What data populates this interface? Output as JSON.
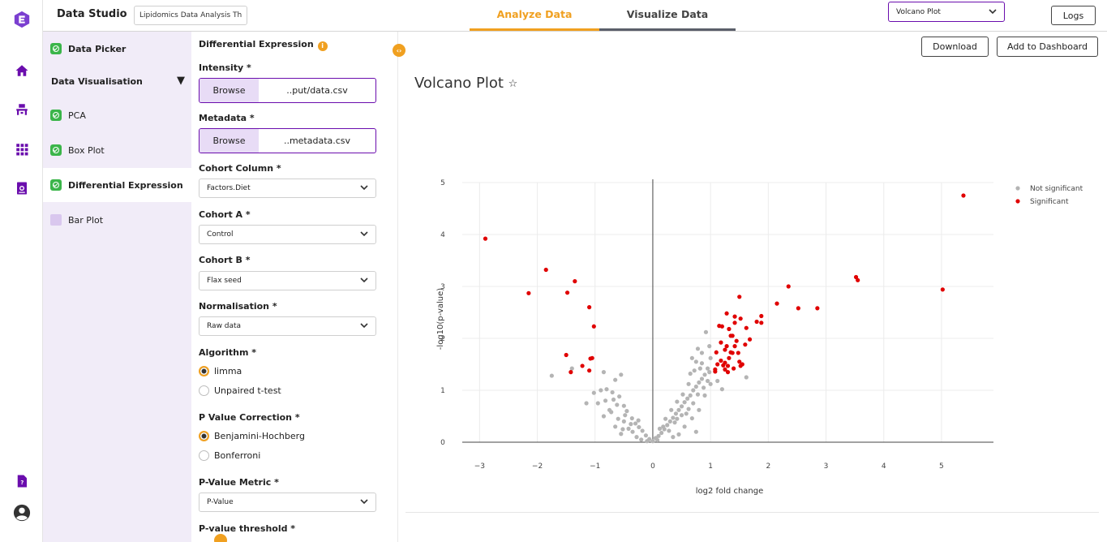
{
  "header": {
    "app_title": "Data Studio",
    "project_name": "Lipidomics Data Analysis Th",
    "tabs": [
      "Analyze Data",
      "Visualize Data"
    ],
    "view_select": "Volcano Plot",
    "logs_label": "Logs"
  },
  "rail": {
    "icons": [
      "logo-icon",
      "home-icon",
      "pipeline-icon",
      "grid-icon",
      "report-icon",
      "help-doc-icon",
      "user-icon"
    ]
  },
  "steps": {
    "data_picker": "Data Picker",
    "group": "Data Visualisation",
    "items": [
      "PCA",
      "Box Plot",
      "Differential Expression",
      "Bar Plot"
    ]
  },
  "form": {
    "title": "Differential Expression",
    "intensity_label": "Intensity *",
    "intensity_file": "..put/data.csv",
    "metadata_label": "Metadata *",
    "metadata_file": "..metadata.csv",
    "browse_label": "Browse",
    "cohort_column_label": "Cohort Column *",
    "cohort_column": "Factors.Diet",
    "cohort_a_label": "Cohort A *",
    "cohort_a": "Control",
    "cohort_b_label": "Cohort B *",
    "cohort_b": "Flax seed",
    "normalisation_label": "Normalisation *",
    "normalisation": "Raw data",
    "algorithm_label": "Algorithm *",
    "algorithm_options": [
      "limma",
      "Unpaired t-test"
    ],
    "pvc_label": "P Value Correction *",
    "pvc_options": [
      "Benjamini-Hochberg",
      "Bonferroni"
    ],
    "pmetric_label": "P-Value Metric *",
    "pmetric": "P-Value",
    "pthreshold_label": "P-value threshold *"
  },
  "main": {
    "download_label": "Download",
    "dashboard_label": "Add to Dashboard",
    "title": "Volcano Plot"
  },
  "colors": {
    "accent": "#f0a020",
    "brand": "#6a0dad",
    "significant": "#e00000",
    "not_significant": "#b4b4b4"
  },
  "chart_data": {
    "type": "scatter",
    "title": "",
    "xlabel": "log2 fold change",
    "ylabel": "-log10(p-value)",
    "xlim": [
      -3.3,
      5.9
    ],
    "ylim": [
      0,
      5
    ],
    "xticks": [
      -3,
      -2,
      -1,
      0,
      1,
      2,
      3,
      4,
      5
    ],
    "yticks": [
      0,
      1,
      2,
      3,
      4,
      5
    ],
    "grid": true,
    "legend_position": "top-right",
    "series": [
      {
        "name": "Significant",
        "color": "#e00000",
        "points": [
          [
            -2.9,
            3.92
          ],
          [
            -2.15,
            2.87
          ],
          [
            -1.85,
            3.32
          ],
          [
            -1.35,
            3.1
          ],
          [
            -1.48,
            2.88
          ],
          [
            -1.1,
            2.6
          ],
          [
            -1.02,
            2.23
          ],
          [
            -1.5,
            1.68
          ],
          [
            -1.42,
            1.35
          ],
          [
            -1.22,
            1.47
          ],
          [
            -1.08,
            1.61
          ],
          [
            -1.05,
            1.62
          ],
          [
            -1.1,
            1.38
          ],
          [
            1.1,
            1.73
          ],
          [
            1.18,
            1.57
          ],
          [
            1.25,
            1.53
          ],
          [
            1.32,
            1.62
          ],
          [
            1.38,
            1.72
          ],
          [
            1.42,
            1.85
          ],
          [
            1.28,
            1.85
          ],
          [
            1.35,
            2.05
          ],
          [
            1.45,
            1.95
          ],
          [
            1.52,
            2.38
          ],
          [
            1.42,
            2.42
          ],
          [
            1.28,
            2.48
          ],
          [
            1.15,
            2.24
          ],
          [
            1.2,
            2.23
          ],
          [
            1.32,
            2.18
          ],
          [
            1.38,
            2.05
          ],
          [
            1.6,
            1.88
          ],
          [
            1.5,
            1.55
          ],
          [
            1.52,
            1.47
          ],
          [
            1.4,
            1.42
          ],
          [
            1.3,
            1.47
          ],
          [
            1.25,
            1.4
          ],
          [
            1.08,
            1.4
          ],
          [
            1.08,
            1.36
          ],
          [
            1.5,
            2.8
          ],
          [
            1.62,
            2.2
          ],
          [
            1.68,
            1.98
          ],
          [
            1.8,
            2.32
          ],
          [
            1.88,
            2.3
          ],
          [
            1.88,
            2.43
          ],
          [
            2.15,
            2.67
          ],
          [
            2.35,
            3.0
          ],
          [
            2.52,
            2.58
          ],
          [
            2.85,
            2.58
          ],
          [
            3.52,
            3.18
          ],
          [
            3.55,
            3.12
          ],
          [
            5.02,
            2.94
          ],
          [
            5.38,
            4.75
          ],
          [
            1.18,
            1.92
          ],
          [
            1.25,
            1.78
          ],
          [
            1.35,
            1.73
          ],
          [
            1.22,
            1.48
          ],
          [
            1.42,
            2.3
          ],
          [
            1.12,
            1.5
          ],
          [
            1.48,
            1.72
          ],
          [
            1.3,
            1.35
          ],
          [
            1.55,
            1.5
          ]
        ]
      },
      {
        "name": "Not significant",
        "color": "#b4b4b4",
        "points": [
          [
            -1.75,
            1.28
          ],
          [
            -1.4,
            1.42
          ],
          [
            -0.85,
            1.35
          ],
          [
            -0.65,
            1.2
          ],
          [
            -0.55,
            1.3
          ],
          [
            -0.9,
            1.0
          ],
          [
            -0.8,
            1.02
          ],
          [
            -0.7,
            0.96
          ],
          [
            -0.58,
            0.88
          ],
          [
            -0.62,
            0.72
          ],
          [
            -0.5,
            0.7
          ],
          [
            -0.45,
            0.6
          ],
          [
            -0.48,
            0.52
          ],
          [
            -0.36,
            0.46
          ],
          [
            -0.3,
            0.36
          ],
          [
            -0.24,
            0.29
          ],
          [
            -0.18,
            0.22
          ],
          [
            -0.12,
            0.13
          ],
          [
            -0.06,
            0.06
          ],
          [
            0.0,
            0.02
          ],
          [
            0.05,
            0.08
          ],
          [
            0.1,
            0.12
          ],
          [
            0.15,
            0.18
          ],
          [
            0.2,
            0.25
          ],
          [
            0.25,
            0.33
          ],
          [
            0.3,
            0.4
          ],
          [
            0.35,
            0.47
          ],
          [
            0.4,
            0.55
          ],
          [
            0.45,
            0.62
          ],
          [
            0.5,
            0.69
          ],
          [
            0.55,
            0.77
          ],
          [
            0.6,
            0.84
          ],
          [
            0.65,
            0.9
          ],
          [
            0.7,
            1.0
          ],
          [
            0.75,
            1.07
          ],
          [
            0.8,
            1.15
          ],
          [
            0.85,
            1.22
          ],
          [
            0.9,
            1.3
          ],
          [
            0.95,
            1.42
          ],
          [
            1.0,
            1.62
          ],
          [
            0.78,
            1.8
          ],
          [
            0.92,
            2.12
          ],
          [
            0.85,
            1.52
          ],
          [
            0.72,
            1.38
          ],
          [
            0.62,
            1.12
          ],
          [
            0.52,
            0.92
          ],
          [
            0.42,
            0.78
          ],
          [
            0.32,
            0.62
          ],
          [
            0.22,
            0.45
          ],
          [
            0.12,
            0.26
          ],
          [
            -0.65,
            0.3
          ],
          [
            -0.55,
            0.16
          ],
          [
            -0.28,
            0.1
          ],
          [
            -0.35,
            0.2
          ],
          [
            -0.42,
            0.26
          ],
          [
            -0.5,
            0.4
          ],
          [
            -1.02,
            0.95
          ],
          [
            -0.72,
            0.58
          ],
          [
            -0.82,
            0.8
          ],
          [
            -0.95,
            0.75
          ],
          [
            -1.15,
            0.75
          ],
          [
            0.75,
            0.2
          ],
          [
            0.45,
            0.15
          ],
          [
            0.55,
            0.3
          ],
          [
            0.68,
            0.46
          ],
          [
            0.8,
            0.62
          ],
          [
            0.9,
            0.9
          ],
          [
            1.0,
            1.12
          ],
          [
            1.62,
            1.25
          ],
          [
            1.2,
            1.02
          ],
          [
            0.85,
            1.72
          ],
          [
            0.98,
            1.85
          ],
          [
            -0.38,
            0.35
          ],
          [
            -0.25,
            0.42
          ],
          [
            -0.6,
            0.45
          ],
          [
            -0.75,
            0.62
          ],
          [
            -0.68,
            0.82
          ],
          [
            -0.52,
            0.25
          ],
          [
            0.35,
            0.1
          ],
          [
            0.28,
            0.22
          ],
          [
            0.18,
            0.3
          ],
          [
            0.38,
            0.38
          ],
          [
            0.58,
            0.55
          ],
          [
            0.7,
            0.75
          ],
          [
            0.88,
            1.05
          ],
          [
            0.65,
            1.32
          ],
          [
            0.75,
            1.55
          ],
          [
            0.98,
            1.35
          ],
          [
            1.12,
            1.18
          ],
          [
            0.5,
            0.52
          ],
          [
            -0.85,
            0.5
          ],
          [
            -0.2,
            0.05
          ],
          [
            0.08,
            0.04
          ],
          [
            -0.1,
            0.02
          ],
          [
            0.42,
            0.45
          ],
          [
            0.62,
            0.64
          ],
          [
            0.78,
            0.92
          ],
          [
            0.95,
            1.18
          ],
          [
            0.82,
            1.42
          ],
          [
            0.68,
            1.62
          ]
        ]
      }
    ]
  }
}
